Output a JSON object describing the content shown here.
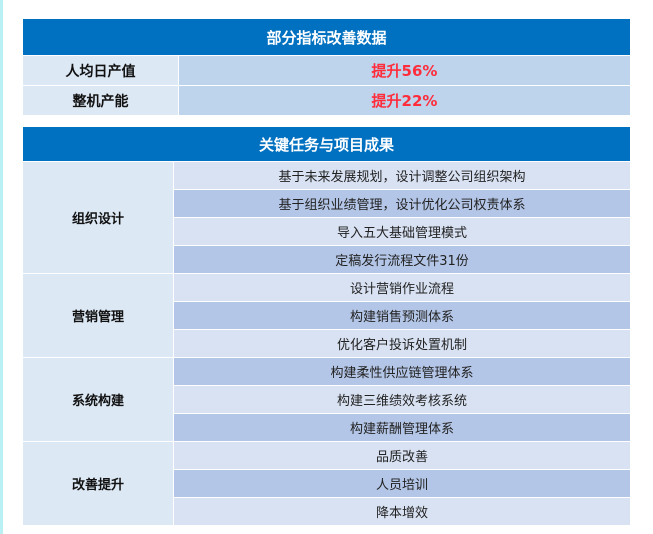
{
  "metrics": {
    "title": "部分指标改善数据",
    "rows": [
      {
        "label": "人均日产值",
        "value": "提升56%"
      },
      {
        "label": "整机产能",
        "value": "提升22%"
      }
    ]
  },
  "tasks": {
    "title": "关键任务与项目成果",
    "groups": [
      {
        "name": "组织设计",
        "items": [
          "基于未来发展规划，设计调整公司组织架构",
          "基于组织业绩管理，设计优化公司权责体系",
          "导入五大基础管理模式",
          "定稿发行流程文件31份"
        ]
      },
      {
        "name": "营销管理",
        "items": [
          "设计营销作业流程",
          "构建销售预测体系",
          "优化客户投诉处置机制"
        ]
      },
      {
        "name": "系统构建",
        "items": [
          "构建柔性供应链管理体系",
          "构建三维绩效考核系统",
          "构建薪酬管理体系"
        ]
      },
      {
        "name": "改善提升",
        "items": [
          "品质改善",
          "人员培训",
          "降本增效"
        ]
      }
    ]
  }
}
